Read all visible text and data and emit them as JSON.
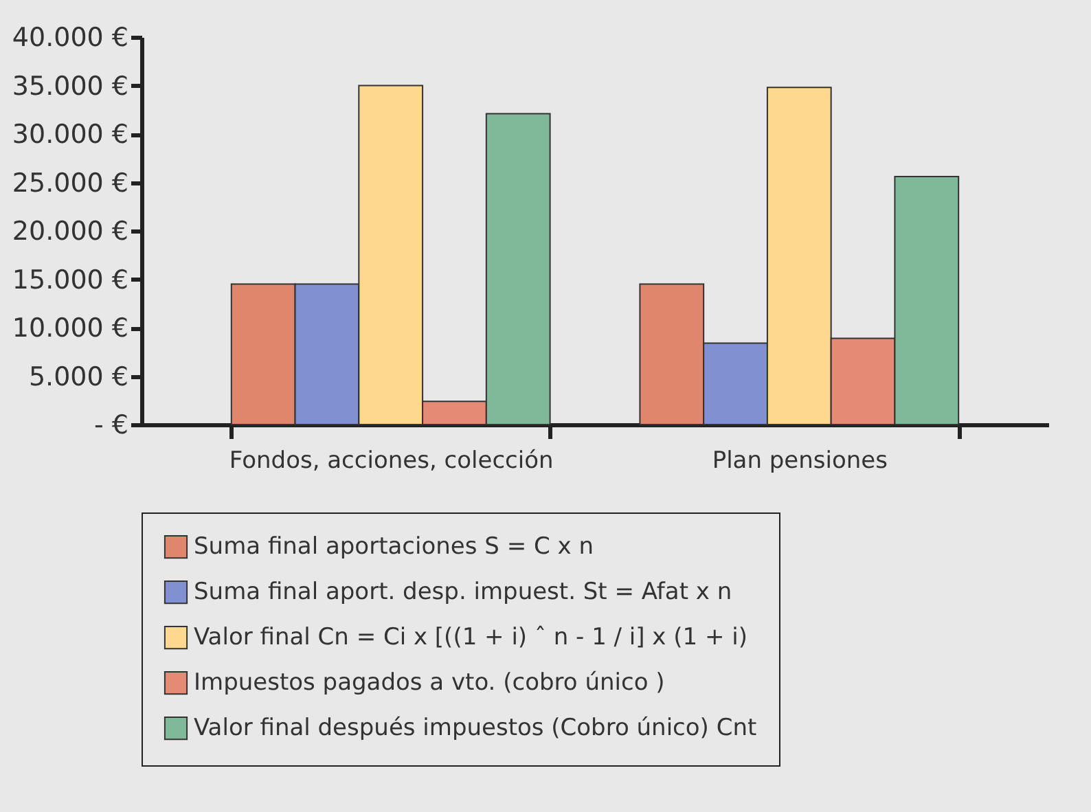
{
  "chart_data": {
    "type": "bar",
    "categories": [
      "Fondos, acciones, colección",
      "Plan pensiones"
    ],
    "series": [
      {
        "name": "Suma final aportaciones S = C x n",
        "color": "#e0866c",
        "values": [
          14500,
          14500
        ]
      },
      {
        "name": "Suma final aport. desp. impuest. St = Afat x n",
        "color": "#8090d0",
        "values": [
          14500,
          8400
        ]
      },
      {
        "name": "Valor final Cn = Ci x [((1 + i) ˆ n - 1 / i] x (1 + i)",
        "color": "#fdd88e",
        "values": [
          35000,
          34800
        ]
      },
      {
        "name": "Impuestos pagados a vto. (cobro único )",
        "color": "#e58a74",
        "values": [
          2400,
          8900
        ]
      },
      {
        "name": "Valor final después impuestos (Cobro único) Cnt",
        "color": "#80b89a",
        "values": [
          32100,
          25600
        ]
      }
    ],
    "ylim": [
      0,
      40000
    ],
    "yticks": [
      {
        "value": 0,
        "label": "- €"
      },
      {
        "value": 5000,
        "label": "5.000 €"
      },
      {
        "value": 10000,
        "label": "10.000 €"
      },
      {
        "value": 15000,
        "label": "15.000 €"
      },
      {
        "value": 20000,
        "label": "20.000 €"
      },
      {
        "value": 25000,
        "label": "25.000 €"
      },
      {
        "value": 30000,
        "label": "30.000 €"
      },
      {
        "value": 35000,
        "label": "35.000 €"
      },
      {
        "value": 40000,
        "label": "40.000 €"
      }
    ],
    "grid": false,
    "legend": "bottom"
  }
}
